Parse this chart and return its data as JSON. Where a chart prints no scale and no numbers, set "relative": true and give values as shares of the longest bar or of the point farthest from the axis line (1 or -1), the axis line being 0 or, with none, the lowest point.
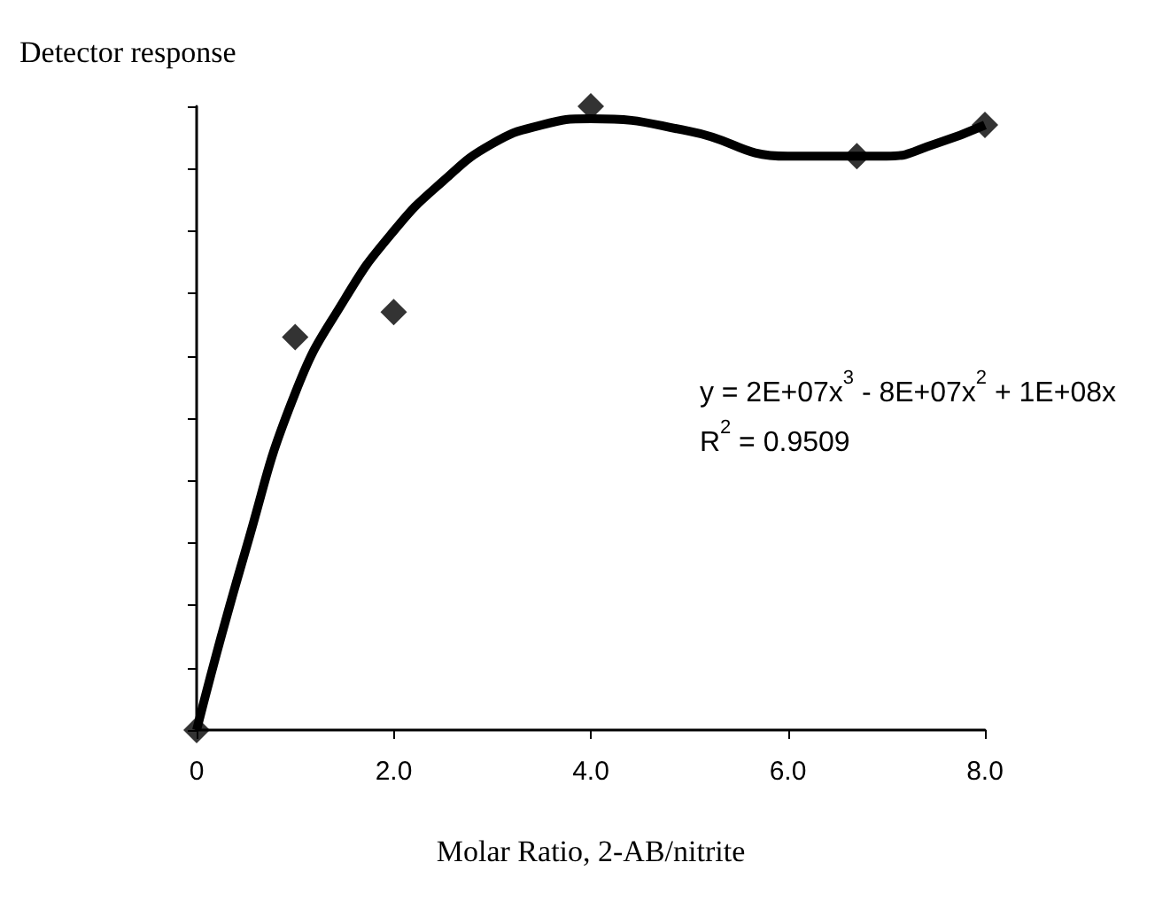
{
  "chart_data": {
    "type": "scatter",
    "ylabel": "Detector response",
    "xlabel": "Molar Ratio, 2-AB/nitrite",
    "relative": true,
    "xlim": [
      0,
      8
    ],
    "xticks": [
      {
        "value": 0,
        "label": "0"
      },
      {
        "value": 2,
        "label": "2.0"
      },
      {
        "value": 4,
        "label": "4.0"
      },
      {
        "value": 6,
        "label": "6.0"
      },
      {
        "value": 8,
        "label": "8.0"
      }
    ],
    "marker": "diamond",
    "grid": false,
    "x": [
      0,
      1,
      2,
      4,
      6.7,
      8
    ],
    "series": [
      {
        "color": "#000000",
        "values": [
          0,
          0.63,
          0.67,
          1,
          0.92,
          0.97
        ]
      },
      {
        "type": "line",
        "marker": "none",
        "color": "#000000",
        "x": [
          0,
          0.5,
          1,
          1.5,
          2,
          2.5,
          3,
          3.5,
          4,
          5,
          6,
          6.5,
          7,
          7.5,
          8
        ],
        "values": [
          0,
          0.29,
          0.54,
          0.69,
          0.8,
          0.88,
          0.94,
          0.97,
          0.98,
          0.96,
          0.92,
          0.92,
          0.92,
          0.94,
          0.97
        ]
      }
    ],
    "annotations": [
      "y = 2E+07x$^{3}$ - 8E+07x$^{2}$ + 1E+08x",
      "R$^{2}$ = 0.9509"
    ]
  }
}
